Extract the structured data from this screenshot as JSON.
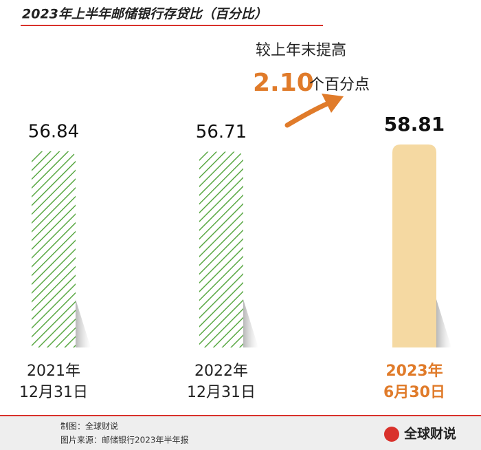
{
  "chart_data": {
    "type": "bar",
    "title": "2023年上半年邮储银行存贷比（百分比）",
    "annotation": {
      "line1": "较上年末提高",
      "number": "2.10",
      "unit": "个百分点"
    },
    "categories": [
      [
        "2021年",
        "12月31日"
      ],
      [
        "2022年",
        "12月31日"
      ],
      [
        "2023年",
        "6月30日"
      ]
    ],
    "values": [
      56.84,
      56.71,
      58.81
    ],
    "colors": [
      "#5aa844",
      "#5aa844",
      "#f5d9a2"
    ],
    "highlight_color": "#e07b2a",
    "footer": {
      "credit": "制图：全球财说",
      "source": "图片来源：邮储银行2023年半年报",
      "logo": "全球财说"
    }
  }
}
